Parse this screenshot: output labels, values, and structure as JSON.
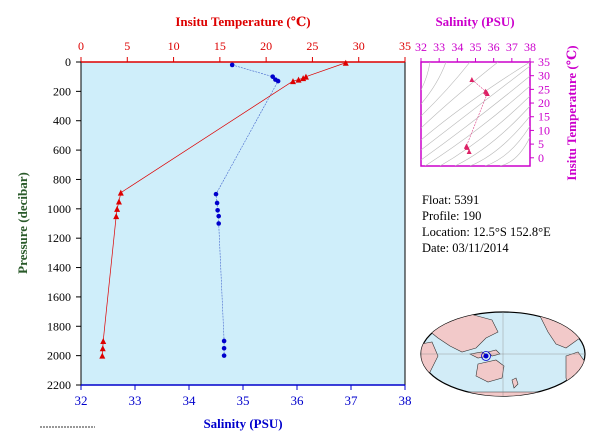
{
  "chart_data": [
    {
      "type": "scatter",
      "title": "",
      "ylabel": "Pressure (decibar)",
      "y_ticks": [
        "0",
        "200",
        "400",
        "600",
        "800",
        "1000",
        "1200",
        "1400",
        "1600",
        "1800",
        "2000",
        "2200"
      ],
      "ylim": [
        0,
        2200
      ],
      "temperature_axis": {
        "label": "Insitu Temperature (℃)",
        "ticks": [
          "0",
          "5",
          "10",
          "15",
          "20",
          "25",
          "30",
          "35"
        ],
        "range": [
          0,
          35
        ],
        "color": "#dd0000"
      },
      "salinity_axis": {
        "label": "Salinity (PSU)",
        "ticks": [
          "32",
          "33",
          "34",
          "35",
          "36",
          "37",
          "38"
        ],
        "range": [
          32,
          38
        ],
        "color": "#0000cc"
      },
      "temperature_profile": [
        {
          "p": 5,
          "t": 28.6
        },
        {
          "p": 100,
          "t": 24.3
        },
        {
          "p": 110,
          "t": 24.0
        },
        {
          "p": 120,
          "t": 23.5
        },
        {
          "p": 130,
          "t": 22.9
        },
        {
          "p": 890,
          "t": 4.3
        },
        {
          "p": 950,
          "t": 4.1
        },
        {
          "p": 1000,
          "t": 3.9
        },
        {
          "p": 1050,
          "t": 3.8
        },
        {
          "p": 1900,
          "t": 2.4
        },
        {
          "p": 1950,
          "t": 2.35
        },
        {
          "p": 2000,
          "t": 2.3
        }
      ],
      "salinity_profile": [
        {
          "p": 20,
          "s": 34.8
        },
        {
          "p": 100,
          "s": 35.55
        },
        {
          "p": 120,
          "s": 35.6
        },
        {
          "p": 130,
          "s": 35.65
        },
        {
          "p": 900,
          "s": 34.5
        },
        {
          "p": 960,
          "s": 34.52
        },
        {
          "p": 1010,
          "s": 34.53
        },
        {
          "p": 1050,
          "s": 34.55
        },
        {
          "p": 1100,
          "s": 34.55
        },
        {
          "p": 1900,
          "s": 34.65
        },
        {
          "p": 1950,
          "s": 34.65
        },
        {
          "p": 2000,
          "s": 34.65
        }
      ],
      "background": "#cfeefa",
      "grid": false
    },
    {
      "type": "scatter",
      "title": "",
      "xlabel": "Salinity (PSU)",
      "ylabel": "Insitu Temperature (℃)",
      "x_ticks": [
        "32",
        "33",
        "34",
        "35",
        "36",
        "37",
        "38"
      ],
      "y_ticks": [
        "0",
        "5",
        "10",
        "15",
        "20",
        "25",
        "30",
        "35"
      ],
      "xlim": [
        32,
        38
      ],
      "ylim": [
        -3,
        35
      ],
      "axis_color": "#cc00cc",
      "points": [
        {
          "s": 34.8,
          "t": 28.6
        },
        {
          "s": 35.55,
          "t": 24.3
        },
        {
          "s": 35.6,
          "t": 24.0
        },
        {
          "s": 35.65,
          "t": 23.5
        },
        {
          "s": 34.5,
          "t": 4.3
        },
        {
          "s": 34.52,
          "t": 4.1
        },
        {
          "s": 34.55,
          "t": 3.8
        },
        {
          "s": 34.65,
          "t": 2.3
        }
      ]
    }
  ],
  "info": {
    "float": "Float:  5391",
    "profile": "Profile:  190",
    "location": "Location:  12.5°S  152.8°E",
    "date": "Date:  03/11/2014"
  },
  "map": {
    "marker_label": "float-location"
  }
}
